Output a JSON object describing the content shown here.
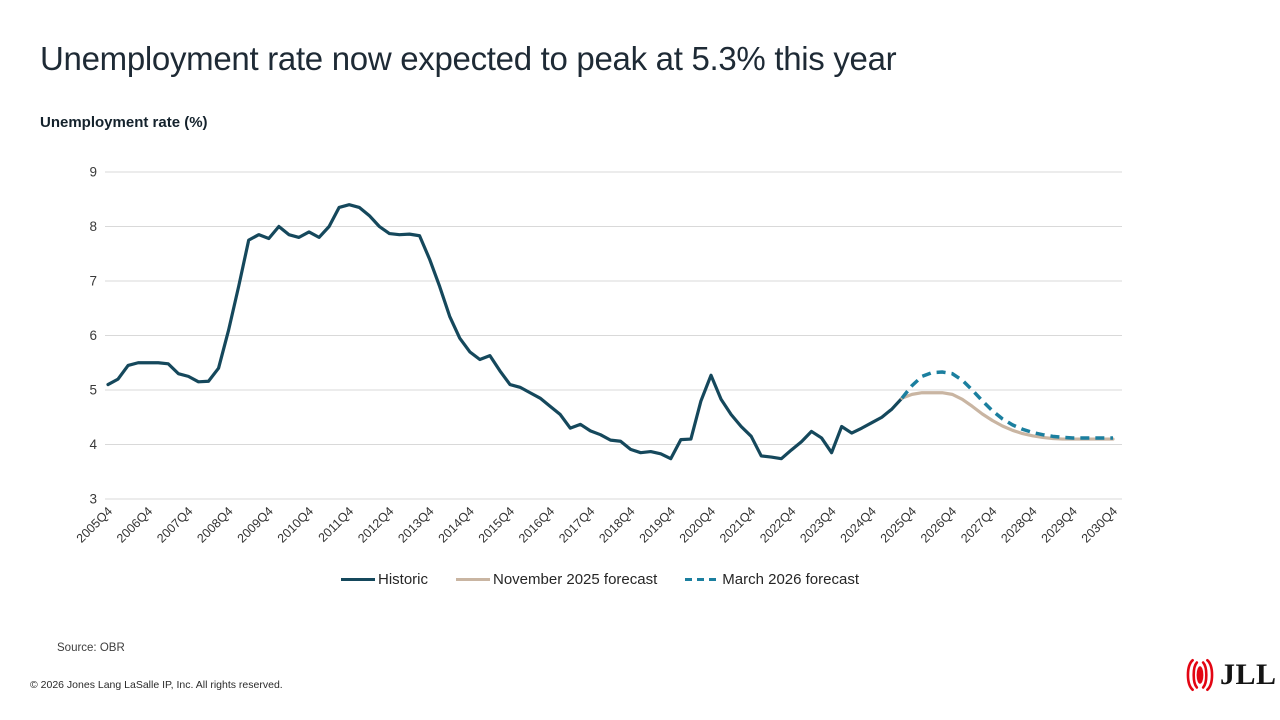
{
  "header": {
    "title": "Unemployment rate now expected to peak at 5.3% this year"
  },
  "chart": {
    "y_axis_title": "Unemployment rate (%)"
  },
  "chart_data": {
    "type": "line",
    "title": "Unemployment rate now expected to peak at 5.3% this year",
    "ylabel": "Unemployment rate (%)",
    "xlabel": "",
    "ylim": [
      3,
      9
    ],
    "yticks": [
      3,
      4,
      5,
      6,
      7,
      8,
      9
    ],
    "grid": "horizontal",
    "legend_position": "bottom-center",
    "x_unit": "quarter",
    "x_start_label": "2005Q4",
    "x_end_label": "2030Q4",
    "x_total_quarters": 101,
    "x_tick_labels": [
      "2005Q4",
      "2006Q4",
      "2007Q4",
      "2008Q4",
      "2009Q4",
      "2010Q4",
      "2011Q4",
      "2012Q4",
      "2013Q4",
      "2014Q4",
      "2015Q4",
      "2016Q4",
      "2017Q4",
      "2018Q4",
      "2019Q4",
      "2020Q4",
      "2021Q4",
      "2022Q4",
      "2023Q4",
      "2024Q4",
      "2025Q4",
      "2026Q4",
      "2027Q4",
      "2028Q4",
      "2029Q4",
      "2030Q4"
    ],
    "series": [
      {
        "name": "Historic",
        "color": "#15485c",
        "style": "solid",
        "start_quarter_index": 0,
        "start_label": "2005Q4",
        "values": [
          5.1,
          5.2,
          5.45,
          5.5,
          5.5,
          5.5,
          5.48,
          5.3,
          5.25,
          5.15,
          5.16,
          5.4,
          6.1,
          6.9,
          7.75,
          7.85,
          7.78,
          8.0,
          7.85,
          7.8,
          7.9,
          7.8,
          8.0,
          8.35,
          8.4,
          8.35,
          8.2,
          8.0,
          7.87,
          7.85,
          7.86,
          7.83,
          7.4,
          6.9,
          6.35,
          5.95,
          5.7,
          5.56,
          5.63,
          5.35,
          5.1,
          5.05,
          4.95,
          4.85,
          4.7,
          4.55,
          4.3,
          4.37,
          4.25,
          4.18,
          4.08,
          4.06,
          3.91,
          3.85,
          3.87,
          3.83,
          3.74,
          4.09,
          4.1,
          4.8,
          5.27,
          4.83,
          4.55,
          4.33,
          4.15,
          3.79,
          3.77,
          3.74,
          3.9,
          4.05,
          4.24,
          4.12,
          3.85,
          4.33,
          4.21,
          4.3,
          4.4,
          4.5,
          4.65,
          4.85
        ]
      },
      {
        "name": "November 2025 forecast",
        "color": "#c9b5a2",
        "style": "solid",
        "start_quarter_index": 79,
        "start_label": "2025Q3",
        "values": [
          4.85,
          4.92,
          4.95,
          4.95,
          4.95,
          4.92,
          4.83,
          4.7,
          4.56,
          4.44,
          4.34,
          4.26,
          4.2,
          4.16,
          4.13,
          4.11,
          4.1,
          4.1,
          4.1,
          4.1,
          4.1,
          4.1
        ]
      },
      {
        "name": "March 2026 forecast",
        "color": "#1b7f9f",
        "style": "dashed",
        "start_quarter_index": 79,
        "start_label": "2025Q3",
        "values": [
          4.85,
          5.08,
          5.25,
          5.32,
          5.33,
          5.3,
          5.18,
          5.0,
          4.8,
          4.62,
          4.47,
          4.36,
          4.28,
          4.22,
          4.18,
          4.15,
          4.13,
          4.12,
          4.12,
          4.12,
          4.12,
          4.12
        ]
      }
    ]
  },
  "footer": {
    "source": "Source: OBR",
    "copyright": "© 2026 Jones Lang LaSalle IP, Inc. All rights reserved."
  },
  "logo": {
    "text": "JLL",
    "mark_color": "#e30613"
  }
}
